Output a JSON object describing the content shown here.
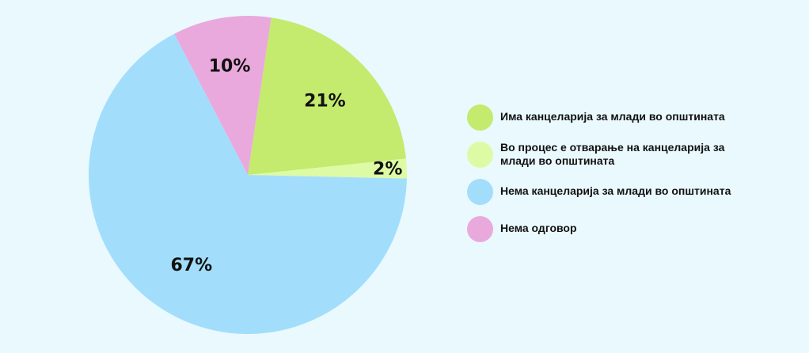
{
  "chart_data": {
    "type": "pie",
    "title": "",
    "slices": [
      {
        "label": "Има канцеларија за млади во општината",
        "value": 21,
        "display": "21%",
        "color": "#c4ea6e"
      },
      {
        "label": "Во процес е отварање на канцеларија за млади во општината",
        "value": 2,
        "display": "2%",
        "color": "#ddfba4"
      },
      {
        "label": "Нема канцеларија за млади во општината",
        "value": 67,
        "display": "67%",
        "color": "#a2defc"
      },
      {
        "label": "Нема одговор",
        "value": 10,
        "display": "10%",
        "color": "#eaa9dd"
      }
    ],
    "legend_position": "right"
  },
  "colors": {
    "background": "#e9f9fd",
    "text": "#111111"
  }
}
